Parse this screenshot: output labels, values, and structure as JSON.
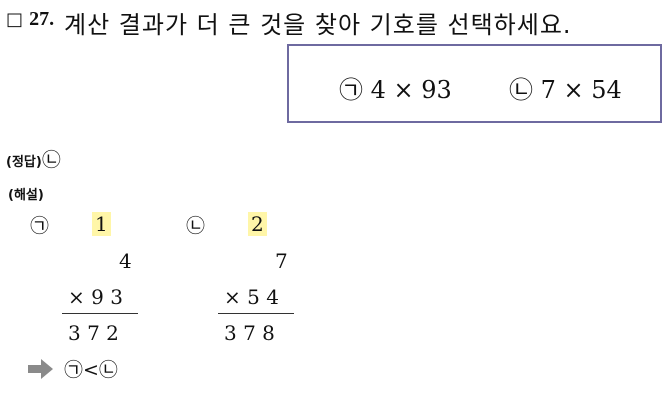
{
  "question": {
    "box": "□",
    "number": "27.",
    "text": "계산 결과가 더 큰 것을 찾아 기호를 선택하세요."
  },
  "choices": [
    {
      "mark": "㉠",
      "expr": "4 × 93"
    },
    {
      "mark": "㉡",
      "expr": "7 × 54"
    }
  ],
  "answer": {
    "label": "(정답)",
    "value": "㉡"
  },
  "explanation": {
    "label": "(해설)",
    "problems": [
      {
        "mark": "㉠",
        "carry": "1",
        "top": "4",
        "op": "× 9 3",
        "result": "3 7 2"
      },
      {
        "mark": "㉡",
        "carry": "2",
        "top": "7",
        "op": "× 5 4",
        "result": "3 7 8"
      }
    ],
    "conclusion": "㉠<㉡"
  },
  "colors": {
    "choice_border": "#6e6aa0",
    "highlight": "#fff6a8",
    "arrow": "#8a8a8a"
  }
}
